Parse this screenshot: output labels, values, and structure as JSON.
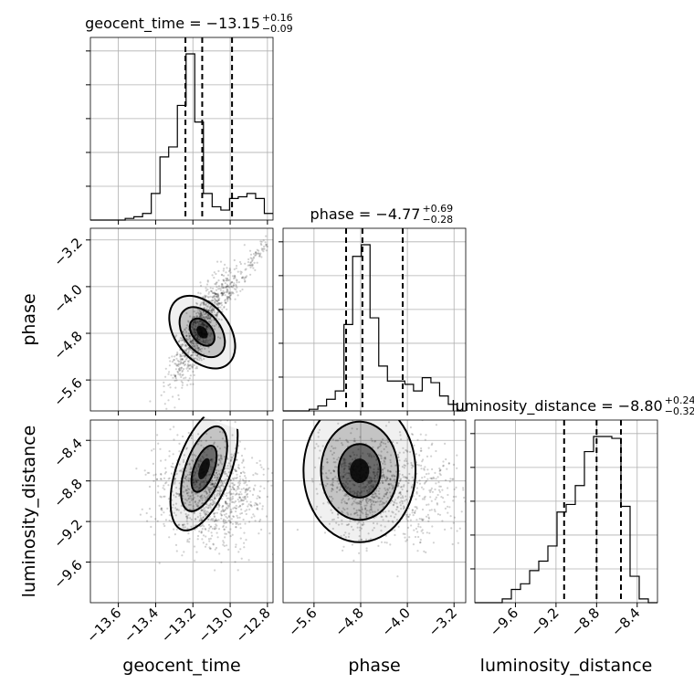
{
  "chart_data": {
    "type": "corner",
    "parameters": [
      "geocent_time",
      "phase",
      "luminosity_distance"
    ],
    "titles": [
      {
        "label": "geocent_time = −13.15",
        "plus": "+0.16",
        "minus": "−0.09"
      },
      {
        "label": "phase = −4.77",
        "plus": "+0.69",
        "minus": "−0.28"
      },
      {
        "label": "luminosity_distance = −8.80",
        "plus": "+0.24",
        "minus": "−0.32"
      }
    ],
    "ranges": [
      [
        -13.75,
        -12.77
      ],
      [
        -6.13,
        -3.0
      ],
      [
        -10.0,
        -8.2
      ]
    ],
    "ticks": [
      {
        "values": [
          -13.6,
          -13.4,
          -13.2,
          -13.0,
          -12.8
        ],
        "labels": [
          "−13.6",
          "−13.4",
          "−13.2",
          "−13.0",
          "−12.8"
        ]
      },
      {
        "values": [
          -5.6,
          -4.8,
          -4.0,
          -3.2
        ],
        "labels": [
          "−5.6",
          "−4.8",
          "−4.0",
          "−3.2"
        ]
      },
      {
        "values": [
          -9.6,
          -9.2,
          -8.8,
          -8.4
        ],
        "labels": [
          "−9.6",
          "−9.2",
          "−8.8",
          "−8.4"
        ]
      }
    ],
    "quantiles": [
      [
        -13.24,
        -13.15,
        -12.99
      ],
      [
        -5.05,
        -4.77,
        -4.08
      ],
      [
        -9.12,
        -8.8,
        -8.56
      ]
    ],
    "histograms": [
      {
        "edges_range": [
          -13.75,
          -12.77
        ],
        "counts": [
          0,
          0,
          0,
          0,
          1,
          2,
          4,
          16,
          38,
          44,
          69,
          100,
          59,
          16,
          8,
          6,
          13,
          14,
          16,
          13,
          4
        ]
      },
      {
        "edges_range": [
          -6.13,
          -3.0
        ],
        "counts": [
          0,
          0,
          0,
          1,
          3,
          7,
          12,
          52,
          93,
          100,
          56,
          27,
          18,
          18,
          16,
          12,
          20,
          17,
          9,
          4,
          0
        ]
      },
      {
        "edges_range": [
          -10.0,
          -8.2
        ],
        "counts": [
          0,
          0,
          0,
          2,
          7,
          10,
          17,
          22,
          30,
          48,
          52,
          62,
          80,
          88,
          88,
          87,
          51,
          14,
          2,
          0
        ]
      }
    ],
    "grid": true,
    "scatter_color": "#000000"
  }
}
